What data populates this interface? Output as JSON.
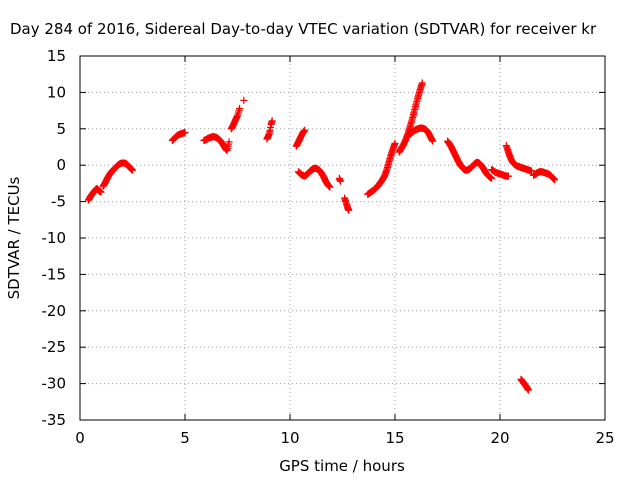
{
  "chart_data": {
    "type": "scatter",
    "title": "Day 284 of 2016, Sidereal Day-to-day VTEC variation (SDTVAR) for receiver kr",
    "xlabel": "GPS time / hours",
    "ylabel": "SDTVAR / TECUs",
    "xlim": [
      0,
      25
    ],
    "ylim": [
      -35,
      15
    ],
    "xticks": [
      "0",
      "5",
      "10",
      "15",
      "20",
      "25"
    ],
    "yticks": [
      "15",
      "10",
      "5",
      "0",
      "-5",
      "-10",
      "-15",
      "-20",
      "-25",
      "-30",
      "-35"
    ],
    "grid": true,
    "legend": "none",
    "marker": "plus",
    "colors": {
      "series": "#ff0000"
    },
    "series": [
      {
        "segments": [
          [
            [
              0.4,
              -4.8
            ],
            [
              0.5,
              -4.3
            ],
            [
              0.6,
              -3.9
            ],
            [
              0.7,
              -3.5
            ],
            [
              0.8,
              -3.2
            ],
            [
              0.9,
              -3.5
            ],
            [
              1.0,
              -3.7
            ]
          ],
          [
            [
              1.1,
              -2.9
            ],
            [
              1.2,
              -2.4
            ],
            [
              1.3,
              -1.8
            ],
            [
              1.4,
              -1.3
            ],
            [
              1.5,
              -0.9
            ],
            [
              1.6,
              -0.6
            ],
            [
              1.7,
              -0.3
            ],
            [
              1.8,
              0.0
            ],
            [
              1.9,
              0.2
            ],
            [
              2.0,
              0.3
            ],
            [
              2.1,
              0.3
            ],
            [
              2.2,
              0.2
            ],
            [
              2.3,
              -0.1
            ],
            [
              2.4,
              -0.4
            ],
            [
              2.5,
              -0.7
            ]
          ],
          [
            [
              4.4,
              3.4
            ],
            [
              4.5,
              3.7
            ],
            [
              4.6,
              4.0
            ],
            [
              4.7,
              4.2
            ],
            [
              4.8,
              4.3
            ],
            [
              4.9,
              4.4
            ],
            [
              5.0,
              4.5
            ]
          ],
          [
            [
              5.9,
              3.4
            ],
            [
              6.0,
              3.5
            ],
            [
              6.1,
              3.7
            ],
            [
              6.2,
              3.8
            ],
            [
              6.3,
              3.9
            ],
            [
              6.4,
              3.9
            ],
            [
              6.5,
              3.8
            ],
            [
              6.6,
              3.6
            ],
            [
              6.7,
              3.3
            ],
            [
              6.8,
              2.9
            ],
            [
              6.9,
              2.4
            ],
            [
              7.0,
              2.0
            ],
            [
              7.05,
              2.6
            ],
            [
              7.1,
              3.2
            ]
          ],
          [
            [
              7.2,
              5.0
            ],
            [
              7.3,
              5.5
            ],
            [
              7.4,
              6.2
            ],
            [
              7.5,
              6.8
            ],
            [
              7.55,
              7.3
            ],
            [
              7.6,
              7.8
            ]
          ],
          [
            [
              7.8,
              8.9
            ]
          ],
          [
            [
              8.9,
              3.6
            ],
            [
              9.0,
              4.2
            ],
            [
              9.05,
              4.8
            ],
            [
              9.1,
              5.6
            ],
            [
              9.15,
              6.1
            ]
          ],
          [
            [
              10.3,
              2.6
            ],
            [
              10.4,
              3.2
            ],
            [
              10.5,
              3.8
            ],
            [
              10.6,
              4.4
            ],
            [
              10.7,
              4.8
            ]
          ],
          [
            [
              10.4,
              -0.9
            ],
            [
              10.5,
              -1.2
            ],
            [
              10.6,
              -1.4
            ],
            [
              10.7,
              -1.5
            ],
            [
              10.8,
              -1.3
            ],
            [
              10.9,
              -1.0
            ],
            [
              11.0,
              -0.7
            ],
            [
              11.1,
              -0.5
            ],
            [
              11.2,
              -0.4
            ],
            [
              11.3,
              -0.5
            ],
            [
              11.4,
              -0.7
            ],
            [
              11.5,
              -1.1
            ],
            [
              11.6,
              -1.6
            ],
            [
              11.7,
              -2.2
            ],
            [
              11.8,
              -2.7
            ],
            [
              11.9,
              -3.0
            ]
          ],
          [
            [
              12.35,
              -1.8
            ],
            [
              12.4,
              -2.2
            ]
          ],
          [
            [
              12.6,
              -4.5
            ],
            [
              12.65,
              -5.0
            ],
            [
              12.7,
              -5.4
            ],
            [
              12.75,
              -5.9
            ],
            [
              12.8,
              -6.2
            ]
          ],
          [
            [
              13.7,
              -4.0
            ],
            [
              13.8,
              -3.8
            ],
            [
              13.9,
              -3.6
            ],
            [
              14.0,
              -3.4
            ],
            [
              14.1,
              -3.1
            ],
            [
              14.2,
              -2.8
            ],
            [
              14.3,
              -2.4
            ],
            [
              14.4,
              -2.0
            ],
            [
              14.5,
              -1.5
            ],
            [
              14.6,
              -0.7
            ],
            [
              14.7,
              0.3
            ],
            [
              14.8,
              1.3
            ],
            [
              14.9,
              2.2
            ],
            [
              15.0,
              3.0
            ]
          ],
          [
            [
              15.2,
              1.8
            ],
            [
              15.3,
              2.3
            ],
            [
              15.4,
              2.8
            ],
            [
              15.5,
              3.4
            ],
            [
              15.6,
              4.2
            ],
            [
              15.7,
              5.1
            ],
            [
              15.8,
              6.1
            ],
            [
              15.9,
              7.2
            ],
            [
              16.0,
              8.3
            ],
            [
              16.1,
              9.4
            ],
            [
              16.2,
              10.4
            ],
            [
              16.3,
              11.3
            ]
          ],
          [
            [
              15.6,
              3.9
            ],
            [
              15.7,
              4.2
            ],
            [
              15.8,
              4.5
            ],
            [
              15.9,
              4.7
            ],
            [
              16.0,
              4.9
            ],
            [
              16.1,
              5.0
            ],
            [
              16.2,
              5.1
            ],
            [
              16.3,
              5.1
            ],
            [
              16.4,
              5.0
            ],
            [
              16.5,
              4.8
            ],
            [
              16.6,
              4.4
            ],
            [
              16.7,
              3.8
            ],
            [
              16.8,
              3.3
            ]
          ],
          [
            [
              17.5,
              3.3
            ],
            [
              17.6,
              2.9
            ],
            [
              17.7,
              2.4
            ],
            [
              17.8,
              1.8
            ],
            [
              17.9,
              1.2
            ],
            [
              18.0,
              0.6
            ],
            [
              18.1,
              0.1
            ],
            [
              18.2,
              -0.3
            ],
            [
              18.3,
              -0.6
            ],
            [
              18.4,
              -0.7
            ],
            [
              18.5,
              -0.6
            ],
            [
              18.6,
              -0.4
            ],
            [
              18.7,
              -0.1
            ],
            [
              18.8,
              0.2
            ],
            [
              18.9,
              0.4
            ],
            [
              19.0,
              0.3
            ],
            [
              19.1,
              0.0
            ],
            [
              19.2,
              -0.4
            ],
            [
              19.3,
              -0.9
            ],
            [
              19.4,
              -1.3
            ],
            [
              19.5,
              -1.6
            ],
            [
              19.6,
              -1.8
            ]
          ],
          [
            [
              19.6,
              -0.6
            ],
            [
              19.7,
              -0.8
            ],
            [
              19.8,
              -1.0
            ],
            [
              19.9,
              -1.1
            ],
            [
              20.0,
              -1.2
            ],
            [
              20.1,
              -1.3
            ],
            [
              20.2,
              -1.4
            ],
            [
              20.3,
              -1.5
            ],
            [
              20.4,
              -1.5
            ]
          ],
          [
            [
              20.3,
              2.7
            ],
            [
              20.4,
              1.8
            ],
            [
              20.5,
              1.0
            ],
            [
              20.6,
              0.4
            ],
            [
              20.7,
              0.1
            ],
            [
              20.8,
              -0.1
            ],
            [
              20.9,
              -0.2
            ],
            [
              21.0,
              -0.3
            ],
            [
              21.1,
              -0.4
            ],
            [
              21.2,
              -0.5
            ],
            [
              21.3,
              -0.6
            ],
            [
              21.4,
              -0.7
            ],
            [
              21.5,
              -0.8
            ]
          ],
          [
            [
              21.0,
              -29.4
            ],
            [
              21.1,
              -29.8
            ],
            [
              21.2,
              -30.2
            ],
            [
              21.3,
              -30.6
            ],
            [
              21.35,
              -30.9
            ]
          ],
          [
            [
              21.6,
              -1.4
            ],
            [
              21.7,
              -1.2
            ],
            [
              21.8,
              -1.0
            ],
            [
              21.9,
              -0.9
            ],
            [
              22.0,
              -0.9
            ],
            [
              22.1,
              -1.0
            ],
            [
              22.2,
              -1.1
            ],
            [
              22.3,
              -1.2
            ],
            [
              22.4,
              -1.4
            ],
            [
              22.5,
              -1.7
            ],
            [
              22.6,
              -2.0
            ]
          ]
        ]
      }
    ]
  }
}
